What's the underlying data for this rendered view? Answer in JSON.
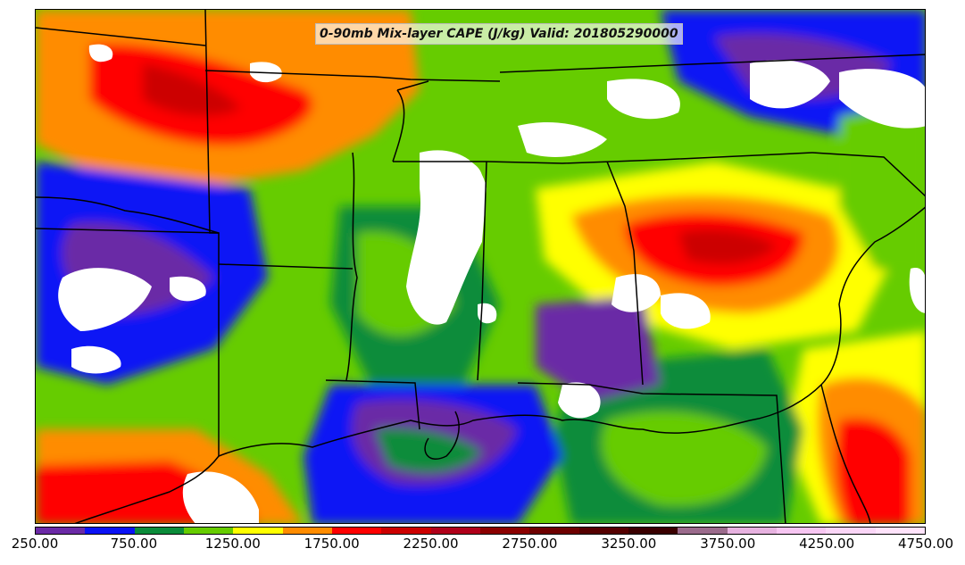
{
  "map": {
    "title": "0-90mb Mix-layer CAPE (J/kg) Valid: 201805290000"
  },
  "colorbar": {
    "colors": [
      "#6b2aa6",
      "#0a12f5",
      "#0b8c3a",
      "#66cc00",
      "#ffff00",
      "#ff8c00",
      "#ff0000",
      "#cc0000",
      "#b0001a",
      "#8b0000",
      "#6e0000",
      "#550000",
      "#3a0000",
      "#9b6b8c",
      "#e7b2e0",
      "#f7c6f2",
      "#fbd6f7",
      "#ffe3fb"
    ],
    "tick_labels": [
      "250.00",
      "750.00",
      "1250.00",
      "1750.00",
      "2250.00",
      "2750.00",
      "3250.00",
      "3750.00",
      "4250.00",
      "4750.00"
    ]
  }
}
